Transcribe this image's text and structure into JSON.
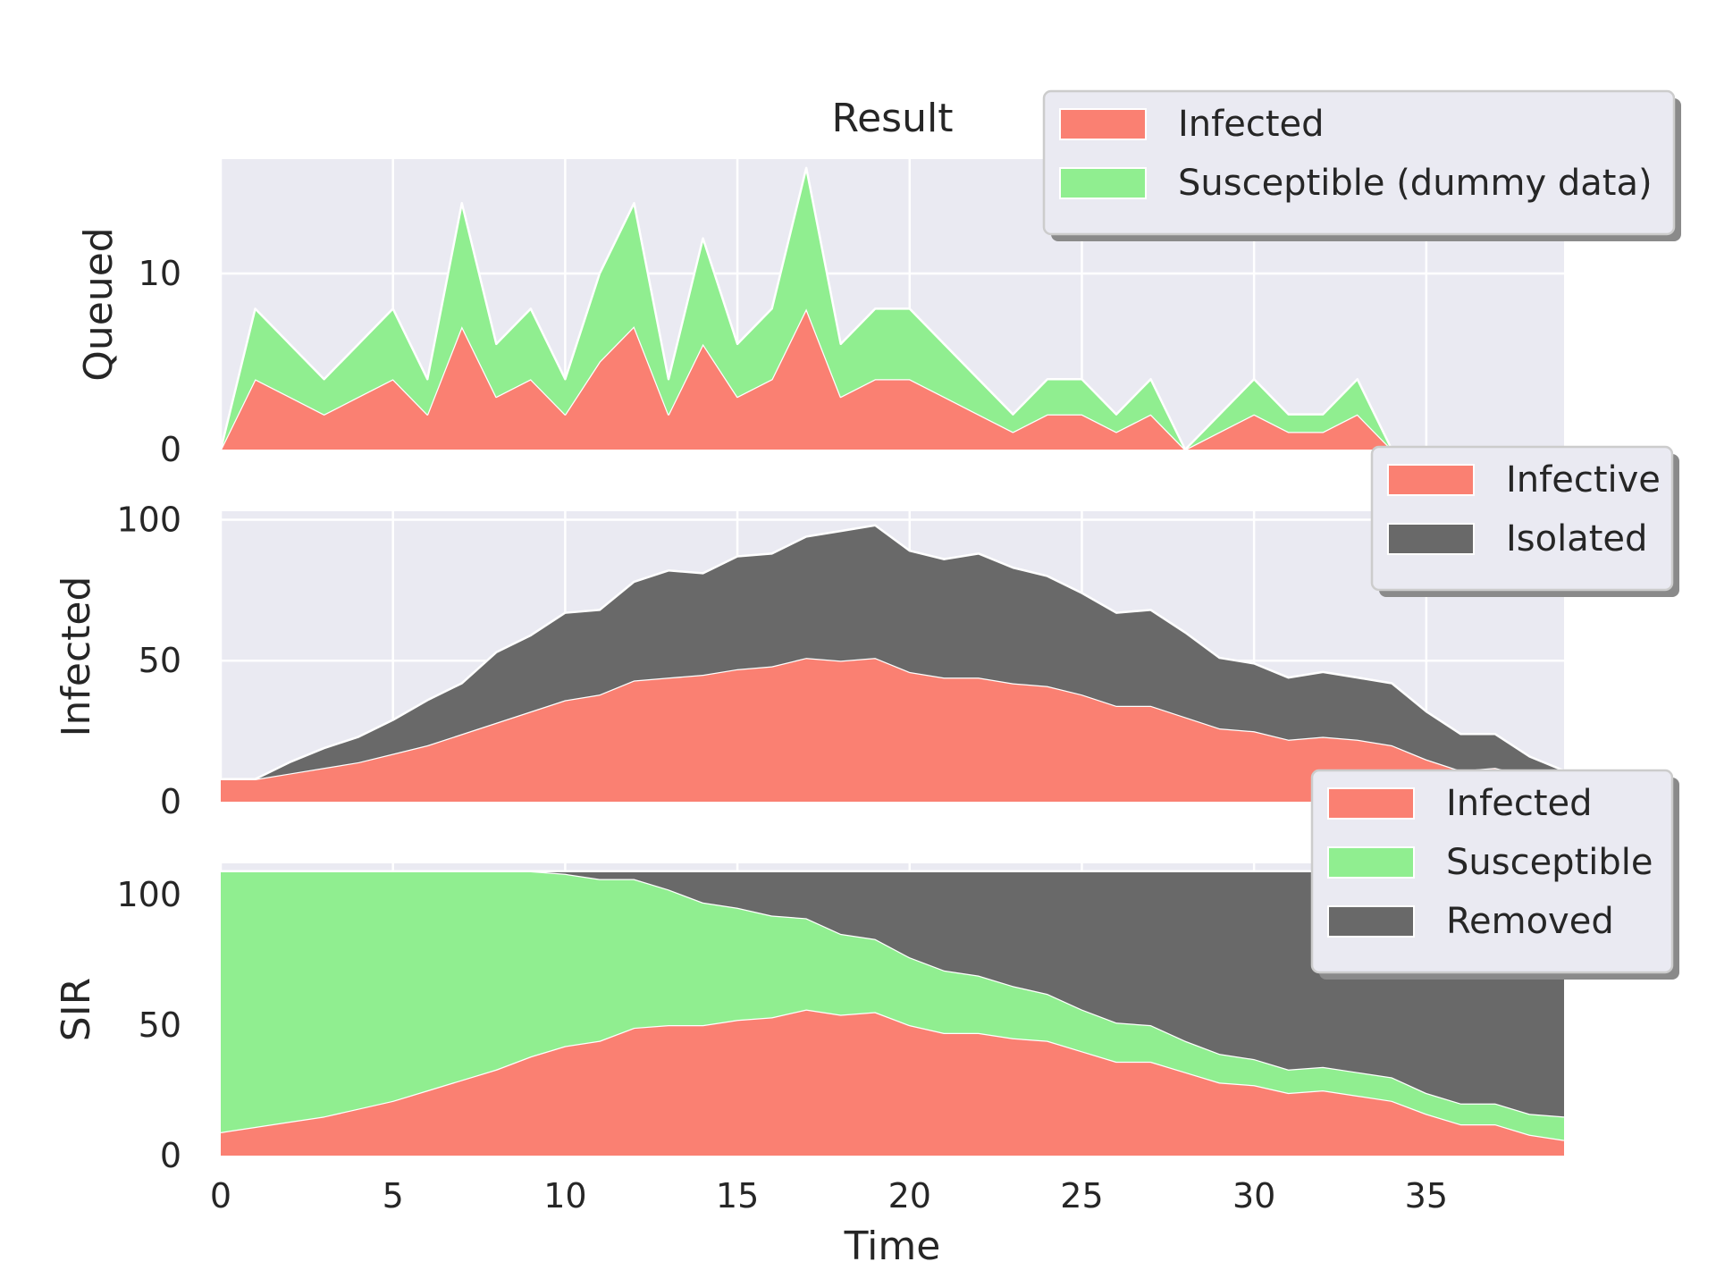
{
  "chart_data": [
    {
      "type": "area",
      "stacked": true,
      "title": "Result",
      "xlabel": "",
      "ylabel": "Queued",
      "x": [
        0,
        1,
        2,
        3,
        4,
        5,
        6,
        7,
        8,
        9,
        10,
        11,
        12,
        13,
        14,
        15,
        16,
        17,
        18,
        19,
        20,
        21,
        22,
        23,
        24,
        25,
        26,
        27,
        28,
        29,
        30,
        31,
        32,
        33,
        34,
        35,
        36,
        37,
        38,
        39
      ],
      "xlim": [
        0,
        39
      ],
      "ylim": [
        0,
        16.5
      ],
      "yticks": [
        0,
        10
      ],
      "xticks": [
        0,
        5,
        10,
        15,
        20,
        25,
        30,
        35
      ],
      "grid": true,
      "legend": "top-right",
      "series": [
        {
          "name": "Infected",
          "color": "#fa8072",
          "values": [
            0,
            4,
            3,
            2,
            3,
            4,
            2,
            7,
            3,
            4,
            2,
            5,
            7,
            2,
            6,
            3,
            4,
            8,
            3,
            4,
            4,
            3,
            2,
            1,
            2,
            2,
            1,
            2,
            0,
            1,
            2,
            1,
            1,
            2,
            0,
            0,
            0,
            0,
            0,
            0
          ]
        },
        {
          "name": "Susceptible (dummy data)",
          "color": "#90ee90",
          "values": [
            0,
            4,
            3,
            2,
            3,
            4,
            2,
            7,
            3,
            4,
            2,
            5,
            7,
            2,
            6,
            3,
            4,
            8,
            3,
            4,
            4,
            3,
            2,
            1,
            2,
            2,
            1,
            2,
            0,
            1,
            2,
            1,
            1,
            2,
            0,
            0,
            0,
            0,
            0,
            0
          ]
        }
      ]
    },
    {
      "type": "area",
      "stacked": true,
      "title": "",
      "xlabel": "",
      "ylabel": "Infected",
      "x": [
        0,
        1,
        2,
        3,
        4,
        5,
        6,
        7,
        8,
        9,
        10,
        11,
        12,
        13,
        14,
        15,
        16,
        17,
        18,
        19,
        20,
        21,
        22,
        23,
        24,
        25,
        26,
        27,
        28,
        29,
        30,
        31,
        32,
        33,
        34,
        35,
        36,
        37,
        38,
        39
      ],
      "xlim": [
        0,
        39
      ],
      "ylim": [
        0,
        103
      ],
      "yticks": [
        0,
        50,
        100
      ],
      "xticks": [
        0,
        5,
        10,
        15,
        20,
        25,
        30,
        35
      ],
      "grid": true,
      "legend": "top-right",
      "series": [
        {
          "name": "Infective",
          "color": "#fa8072",
          "values": [
            8,
            8,
            10,
            12,
            14,
            17,
            20,
            24,
            28,
            32,
            36,
            38,
            43,
            44,
            45,
            47,
            48,
            51,
            50,
            51,
            46,
            44,
            44,
            42,
            41,
            38,
            34,
            34,
            30,
            26,
            25,
            22,
            23,
            22,
            20,
            15,
            11,
            12,
            9,
            8
          ]
        },
        {
          "name": "Isolated",
          "color": "#696969",
          "values": [
            0,
            0,
            4,
            7,
            9,
            12,
            16,
            18,
            25,
            27,
            31,
            30,
            35,
            38,
            36,
            40,
            40,
            43,
            46,
            47,
            43,
            42,
            44,
            41,
            39,
            36,
            33,
            34,
            30,
            25,
            24,
            22,
            23,
            22,
            22,
            17,
            13,
            12,
            7,
            3
          ]
        }
      ]
    },
    {
      "type": "area",
      "stacked": true,
      "title": "",
      "xlabel": "Time",
      "ylabel": "SIR",
      "x": [
        0,
        1,
        2,
        3,
        4,
        5,
        6,
        7,
        8,
        9,
        10,
        11,
        12,
        13,
        14,
        15,
        16,
        17,
        18,
        19,
        20,
        21,
        22,
        23,
        24,
        25,
        26,
        27,
        28,
        29,
        30,
        31,
        32,
        33,
        34,
        35,
        36,
        37,
        38,
        39
      ],
      "xlim": [
        0,
        39
      ],
      "ylim": [
        0,
        112
      ],
      "yticks": [
        0,
        50,
        100
      ],
      "xticks": [
        0,
        5,
        10,
        15,
        20,
        25,
        30,
        35
      ],
      "grid": true,
      "legend": "top-right",
      "series": [
        {
          "name": "Infected",
          "color": "#fa8072",
          "values": [
            9,
            11,
            13,
            15,
            18,
            21,
            25,
            29,
            33,
            38,
            42,
            44,
            49,
            50,
            50,
            52,
            53,
            56,
            54,
            55,
            50,
            47,
            47,
            45,
            44,
            40,
            36,
            36,
            32,
            28,
            27,
            24,
            25,
            23,
            21,
            16,
            12,
            12,
            8,
            6
          ]
        },
        {
          "name": "Susceptible",
          "color": "#90ee90",
          "values": [
            100,
            98,
            96,
            94,
            91,
            88,
            84,
            80,
            76,
            71,
            66,
            62,
            57,
            52,
            47,
            43,
            39,
            35,
            31,
            28,
            26,
            24,
            22,
            20,
            18,
            16,
            15,
            14,
            12,
            11,
            10,
            9,
            9,
            9,
            9,
            8,
            8,
            8,
            8,
            9
          ]
        },
        {
          "name": "Removed",
          "color": "#696969",
          "values": [
            0,
            0,
            0,
            0,
            0,
            0,
            0,
            0,
            0,
            0,
            1,
            3,
            3,
            7,
            12,
            14,
            17,
            18,
            24,
            26,
            33,
            38,
            40,
            44,
            47,
            53,
            58,
            59,
            65,
            70,
            72,
            76,
            75,
            77,
            79,
            85,
            89,
            89,
            93,
            94
          ]
        }
      ]
    }
  ]
}
